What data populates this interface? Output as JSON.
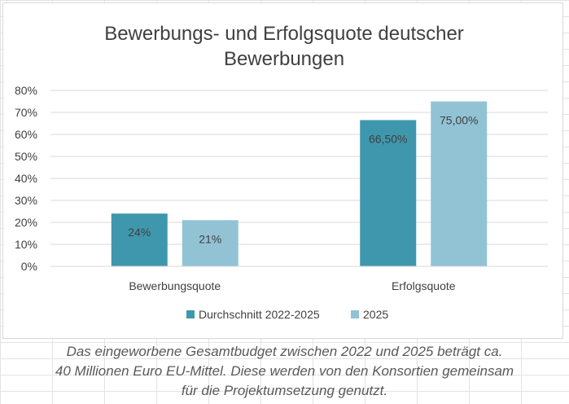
{
  "chart_data": {
    "type": "bar",
    "title_lines": [
      "Bewerbungs- und Erfolgsquote deutscher",
      "Bewerbungen"
    ],
    "categories": [
      "Bewerbungsquote",
      "Erfolgsquote"
    ],
    "series": [
      {
        "name": "Durchschnitt 2022-2025",
        "color": "#3f97ad",
        "values": [
          24,
          66.5
        ],
        "labels": [
          "24%",
          "66,50%"
        ]
      },
      {
        "name": "2025",
        "color": "#92c3d5",
        "values": [
          21,
          75
        ],
        "labels": [
          "21%",
          "75,00%"
        ]
      }
    ],
    "ylim": [
      0,
      80
    ],
    "yticks": [
      "0%",
      "10%",
      "20%",
      "30%",
      "40%",
      "50%",
      "60%",
      "70%",
      "80%"
    ],
    "grid": true,
    "legend": "bottom"
  },
  "caption_lines": [
    "Das eingeworbene Gesamtbudget zwischen 2022 und 2025 beträgt ca.",
    "40 Millionen Euro EU-Mittel. Diese werden von den Konsortien gemeinsam",
    "für die Projektumsetzung genutzt."
  ]
}
